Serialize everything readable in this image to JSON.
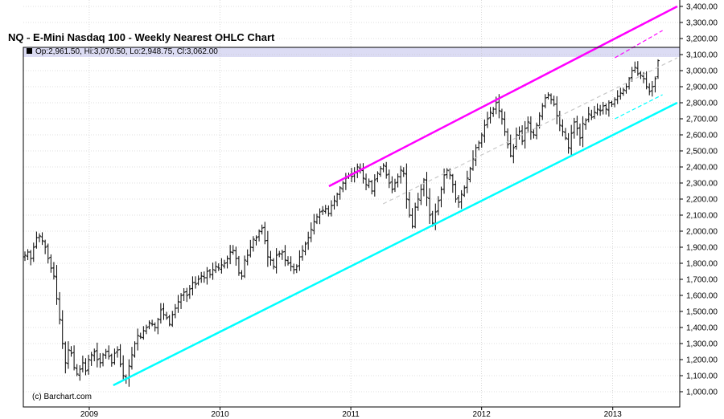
{
  "title": "NQ - E-Mini Nasdaq 100 - Weekly Nearest OHLC Chart",
  "ohlc_readout": "Op:2,961.50, Hi:3,070.50, Lo:2,948.75, Cl:3,062.00",
  "credit": "(c) Barchart.com",
  "colors": {
    "bars": "#000000",
    "upper_channel": "#ff00ff",
    "lower_channel": "#00ffff",
    "mid_trend": "#c8c8c8",
    "grid": "#c0c0c0",
    "readout_bg": "#dcdcf4"
  },
  "chart_data": {
    "type": "ohlc",
    "title": "NQ - E-Mini Nasdaq 100 - Weekly Nearest OHLC Chart",
    "ylim": [
      950,
      3400
    ],
    "y_ticks": [
      "1,000.00",
      "1,100.00",
      "1,200.00",
      "1,300.00",
      "1,400.00",
      "1,500.00",
      "1,600.00",
      "1,700.00",
      "1,800.00",
      "1,900.00",
      "2,000.00",
      "2,100.00",
      "2,200.00",
      "2,300.00",
      "2,400.00",
      "2,500.00",
      "2,600.00",
      "2,700.00",
      "2,800.00",
      "2,900.00",
      "3,000.00",
      "3,100.00",
      "3,200.00",
      "3,300.00",
      "3,400.00"
    ],
    "x_ticks": [
      "2009",
      "2010",
      "2011",
      "2012",
      "2013"
    ],
    "grid": true,
    "last_bar": {
      "open": 2961.5,
      "high": 3070.5,
      "low": 2948.75,
      "close": 3062.0
    },
    "closes": [
      1850,
      1870,
      1830,
      1900,
      1960,
      1970,
      1940,
      1900,
      1830,
      1770,
      1720,
      1580,
      1450,
      1300,
      1180,
      1260,
      1240,
      1150,
      1110,
      1140,
      1180,
      1130,
      1200,
      1230,
      1250,
      1200,
      1180,
      1230,
      1250,
      1220,
      1180,
      1240,
      1260,
      1170,
      1100,
      1080,
      1160,
      1230,
      1300,
      1350,
      1340,
      1380,
      1400,
      1430,
      1420,
      1400,
      1450,
      1510,
      1480,
      1460,
      1420,
      1480,
      1520,
      1560,
      1600,
      1620,
      1600,
      1640,
      1680,
      1670,
      1700,
      1720,
      1710,
      1750,
      1730,
      1760,
      1780,
      1770,
      1790,
      1800,
      1830,
      1870,
      1880,
      1830,
      1740,
      1720,
      1820,
      1850,
      1900,
      1950,
      1960,
      2000,
      2020,
      1940,
      1840,
      1820,
      1780,
      1850,
      1860,
      1870,
      1820,
      1800,
      1780,
      1760,
      1780,
      1840,
      1880,
      1920,
      1960,
      2010,
      2060,
      2090,
      2120,
      2130,
      2140,
      2110,
      2160,
      2190,
      2230,
      2270,
      2300,
      2330,
      2350,
      2340,
      2370,
      2400,
      2380,
      2330,
      2290,
      2310,
      2250,
      2320,
      2360,
      2390,
      2410,
      2350,
      2300,
      2260,
      2300,
      2340,
      2380,
      2360,
      2200,
      2100,
      2030,
      2150,
      2200,
      2260,
      2320,
      2210,
      2100,
      2050,
      2120,
      2190,
      2260,
      2350,
      2380,
      2350,
      2290,
      2200,
      2180,
      2230,
      2270,
      2330,
      2390,
      2450,
      2520,
      2550,
      2600,
      2660,
      2700,
      2740,
      2760,
      2800,
      2750,
      2700,
      2620,
      2540,
      2470,
      2520,
      2600,
      2620,
      2560,
      2640,
      2680,
      2620,
      2600,
      2660,
      2720,
      2780,
      2830,
      2850,
      2820,
      2790,
      2720,
      2660,
      2620,
      2580,
      2520,
      2610,
      2680,
      2640,
      2580,
      2670,
      2690,
      2730,
      2710,
      2740,
      2760,
      2750,
      2780,
      2760,
      2800,
      2790,
      2820,
      2840,
      2860,
      2880,
      2900,
      2950,
      3000,
      3020,
      2980,
      2970,
      2950,
      2900,
      2870,
      2900,
      2950,
      3062
    ],
    "upper_channel": {
      "from": [
        "2010-11-01",
        2280
      ],
      "to": [
        "2013-06-30",
        3400
      ]
    },
    "lower_channel": {
      "from": [
        "2009-03-09",
        1040
      ],
      "to": [
        "2013-06-30",
        2800
      ]
    },
    "upper_channel_dashed": {
      "from": [
        "2013-01-07",
        3080
      ],
      "to": [
        "2013-05-20",
        3250
      ]
    },
    "lower_channel_dashed": {
      "from": [
        "2013-01-07",
        2700
      ],
      "to": [
        "2013-05-20",
        2850
      ]
    },
    "mid_trend_dashed": {
      "from": [
        "2011-04-01",
        2170
      ],
      "to": [
        "2013-06-30",
        3080
      ]
    }
  }
}
